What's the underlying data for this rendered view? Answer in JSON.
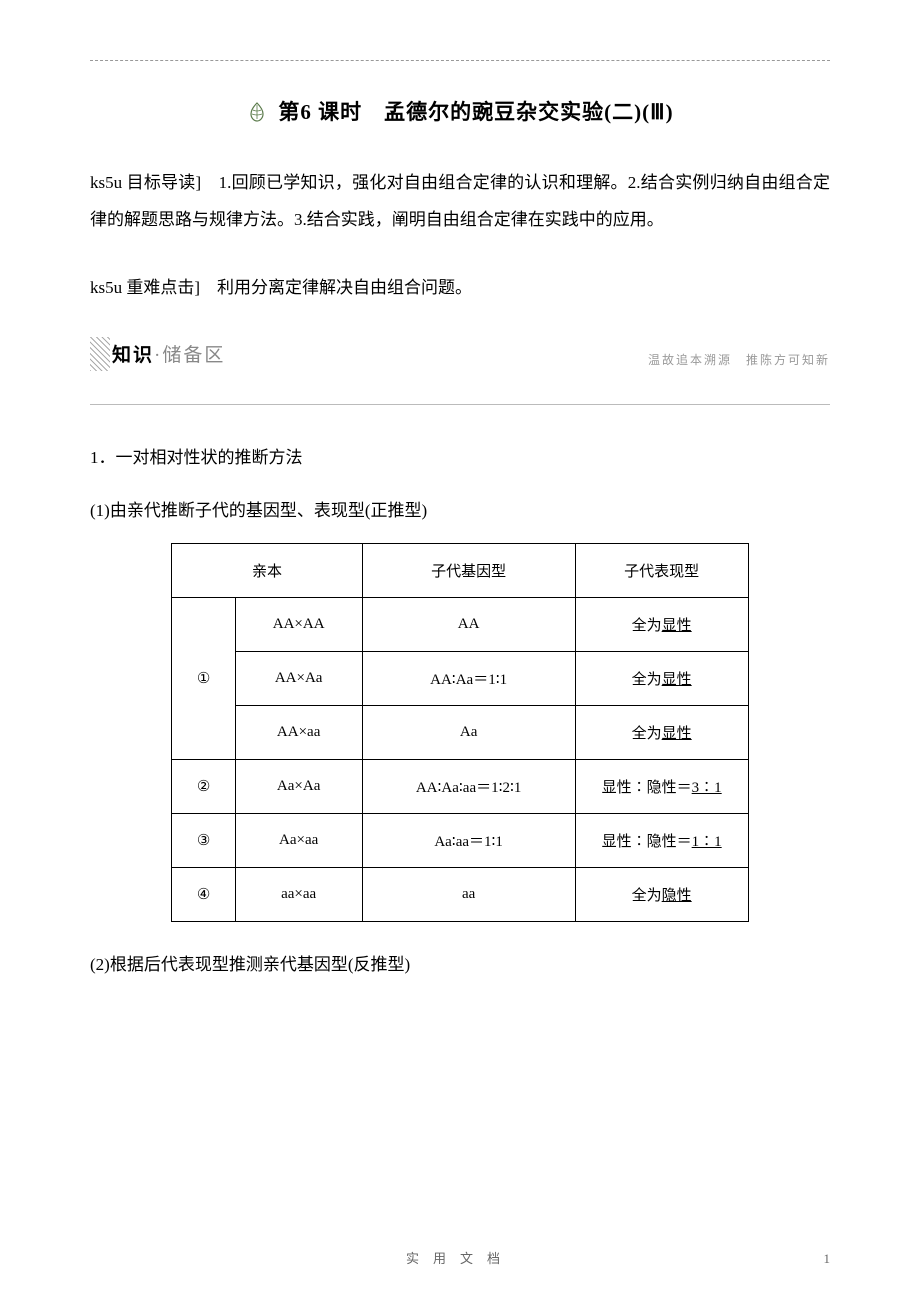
{
  "title": "6 课时　孟德尔的豌豆杂交实验(二)(Ⅲ)",
  "title_prefix": "第",
  "para1": "ks5u 目标导读]　1.回顾已学知识，强化对自由组合定律的认识和理解。2.结合实例归纳自由组合定律的解题思路与规律方法。3.结合实践，阐明自由组合定律在实践中的应用。",
  "para2": "ks5u 重难点击]　利用分离定律解决自由组合问题。",
  "section": {
    "label_bold": "知识",
    "label_light": "·储备区",
    "subtitle": "温故追本溯源　推陈方可知新"
  },
  "heading1": "1．一对相对性状的推断方法",
  "sub1": "(1)由亲代推断子代的基因型、表现型(正推型)",
  "sub2": "(2)根据后代表现型推测亲代基因型(反推型)",
  "table": {
    "headers": [
      "亲本",
      "子代基因型",
      "子代表现型"
    ],
    "group_labels": [
      "①",
      "②",
      "③",
      "④"
    ],
    "rows": [
      {
        "parent": "AA×AA",
        "geno": "AA",
        "pheno_prefix": "全为",
        "pheno_underline": "显性"
      },
      {
        "parent": "AA×Aa",
        "geno": "AA∶Aa＝1∶1",
        "pheno_prefix": "全为",
        "pheno_underline": "显性"
      },
      {
        "parent": "AA×aa",
        "geno": "Aa",
        "pheno_prefix": "全为",
        "pheno_underline": "显性"
      },
      {
        "parent": "Aa×Aa",
        "geno": "AA∶Aa∶aa＝1∶2∶1",
        "pheno_prefix": "显性∶隐性＝",
        "pheno_underline": "3∶1"
      },
      {
        "parent": "Aa×aa",
        "geno": "Aa∶aa＝1∶1",
        "pheno_prefix": "显性∶隐性＝",
        "pheno_underline": "1∶1"
      },
      {
        "parent": "aa×aa",
        "geno": "aa",
        "pheno_prefix": "全为",
        "pheno_underline": "隐性"
      }
    ],
    "col_widths": [
      "11%",
      "22%",
      "37%",
      "30%"
    ]
  },
  "footer": "实用文档",
  "page_num": "1",
  "colors": {
    "text": "#000000",
    "light_text": "#888888",
    "subtitle": "#999999",
    "border": "#000000",
    "dashed": "#999999",
    "footer": "#666666"
  }
}
